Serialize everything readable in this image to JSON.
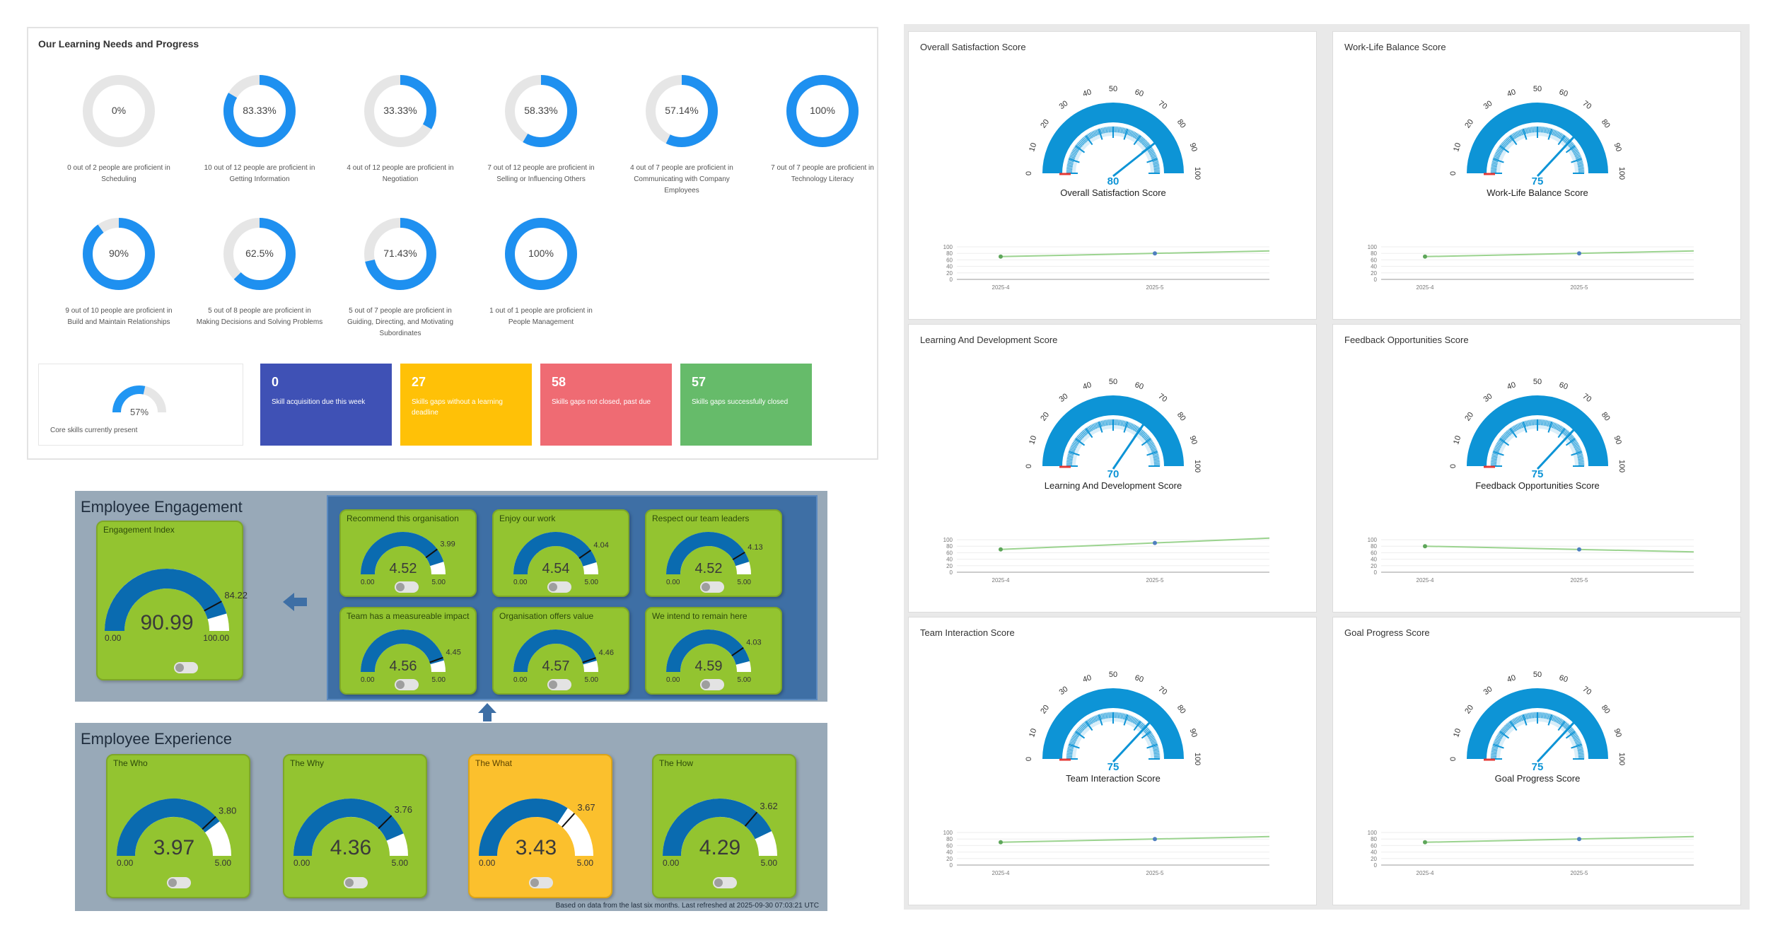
{
  "learning": {
    "title": "Our Learning Needs and Progress",
    "rings": [
      {
        "pct": 0,
        "label": "0%",
        "caption1": "0 out of 2 people are proficient in",
        "caption2": "Scheduling",
        "caption3": ""
      },
      {
        "pct": 83.33,
        "label": "83.33%",
        "caption1": "10 out of 12 people are proficient in",
        "caption2": "Getting Information",
        "caption3": ""
      },
      {
        "pct": 33.33,
        "label": "33.33%",
        "caption1": "4 out of 12 people are proficient in",
        "caption2": "Negotiation",
        "caption3": ""
      },
      {
        "pct": 58.33,
        "label": "58.33%",
        "caption1": "7 out of 12 people are proficient in",
        "caption2": "Selling or Influencing Others",
        "caption3": ""
      },
      {
        "pct": 57.14,
        "label": "57.14%",
        "caption1": "4 out of 7 people are proficient in",
        "caption2": "Communicating with Company",
        "caption3": "Employees"
      },
      {
        "pct": 100,
        "label": "100%",
        "caption1": "7 out of 7 people are proficient in",
        "caption2": "Technology Literacy",
        "caption3": ""
      },
      {
        "pct": 90,
        "label": "90%",
        "caption1": "9 out of 10 people are proficient in",
        "caption2": "Build and Maintain Relationships",
        "caption3": ""
      },
      {
        "pct": 62.5,
        "label": "62.5%",
        "caption1": "5 out of 8 people are proficient in",
        "caption2": "Making Decisions and Solving Problems",
        "caption3": ""
      },
      {
        "pct": 71.43,
        "label": "71.43%",
        "caption1": "5 out of 7 people are proficient in",
        "caption2": "Guiding, Directing, and Motivating",
        "caption3": "Subordinates"
      },
      {
        "pct": 100,
        "label": "100%",
        "caption1": "1 out of 1 people are proficient in",
        "caption2": "People Management",
        "caption3": ""
      }
    ],
    "core": {
      "pct": 57,
      "label": "57%",
      "caption": "Core skills currently present"
    },
    "tiles": [
      {
        "num": "0",
        "text": "Skill acquisition due this week",
        "color": "#3f51b5"
      },
      {
        "num": "27",
        "text": "Skills gaps without a learning deadline",
        "color": "#ffc107"
      },
      {
        "num": "58",
        "text": "Skills gaps not closed, past due",
        "color": "#ef6b73"
      },
      {
        "num": "57",
        "text": "Skills gaps successfully closed",
        "color": "#66bb6a"
      }
    ]
  },
  "engagement": {
    "title": "Employee Engagement",
    "index": {
      "title": "Engagement Index",
      "value": "90.99",
      "target": "84.22",
      "min": "0.00",
      "max": "100.00",
      "frac": 0.9099,
      "target_frac": 0.8422
    },
    "cards": [
      {
        "title": "Recommend this organisation",
        "value": "4.52",
        "target": "3.99",
        "min": "0.00",
        "max": "5.00",
        "frac": 0.904,
        "target_frac": 0.798
      },
      {
        "title": "Enjoy our work",
        "value": "4.54",
        "target": "4.04",
        "min": "0.00",
        "max": "5.00",
        "frac": 0.908,
        "target_frac": 0.808
      },
      {
        "title": "Respect our team leaders",
        "value": "4.52",
        "target": "4.13",
        "min": "0.00",
        "max": "5.00",
        "frac": 0.904,
        "target_frac": 0.826
      },
      {
        "title": "Team has a measureable impact",
        "value": "4.56",
        "target": "4.45",
        "min": "0.00",
        "max": "5.00",
        "frac": 0.912,
        "target_frac": 0.89
      },
      {
        "title": "Organisation offers value",
        "value": "4.57",
        "target": "4.46",
        "min": "0.00",
        "max": "5.00",
        "frac": 0.914,
        "target_frac": 0.892
      },
      {
        "title": "We intend to remain here",
        "value": "4.59",
        "target": "4.03",
        "min": "0.00",
        "max": "5.00",
        "frac": 0.918,
        "target_frac": 0.806
      }
    ]
  },
  "experience": {
    "title": "Employee Experience",
    "cards": [
      {
        "title": "The Who",
        "value": "3.97",
        "target": "3.80",
        "min": "0.00",
        "max": "5.00",
        "frac": 0.794,
        "target_frac": 0.76,
        "yellow": false
      },
      {
        "title": "The Why",
        "value": "4.36",
        "target": "3.76",
        "min": "0.00",
        "max": "5.00",
        "frac": 0.872,
        "target_frac": 0.752,
        "yellow": false
      },
      {
        "title": "The What",
        "value": "3.43",
        "target": "3.67",
        "min": "0.00",
        "max": "5.00",
        "frac": 0.686,
        "target_frac": 0.734,
        "yellow": true
      },
      {
        "title": "The How",
        "value": "4.29",
        "target": "3.62",
        "min": "0.00",
        "max": "5.00",
        "frac": 0.858,
        "target_frac": 0.724,
        "yellow": false
      }
    ],
    "footnote": "Based on data from the last six months. Last refreshed at 2025-09-30 07:03:21 UTC"
  },
  "scores": {
    "gauge_ticks": [
      "0",
      "10",
      "20",
      "30",
      "40",
      "50",
      "60",
      "70",
      "80",
      "90",
      "100"
    ],
    "trend_y_ticks": [
      "100",
      "80",
      "60",
      "40",
      "20",
      "0"
    ],
    "trend_x_ticks": [
      "2025-4",
      "2025-5"
    ],
    "cards": [
      {
        "title": "Overall Satisfaction Score",
        "value": "80",
        "num": 80,
        "trend": [
          70,
          80
        ]
      },
      {
        "title": "Work-Life Balance Score",
        "value": "75",
        "num": 75,
        "trend": [
          70,
          80
        ]
      },
      {
        "title": "Learning And Development Score",
        "value": "70",
        "num": 70,
        "trend": [
          70,
          90
        ]
      },
      {
        "title": "Feedback Opportunities Score",
        "value": "75",
        "num": 75,
        "trend": [
          80,
          70
        ]
      },
      {
        "title": "Team Interaction Score",
        "value": "75",
        "num": 75,
        "trend": [
          70,
          80
        ]
      },
      {
        "title": "Goal Progress Score",
        "value": "75",
        "num": 75,
        "trend": [
          70,
          80
        ]
      }
    ]
  }
}
